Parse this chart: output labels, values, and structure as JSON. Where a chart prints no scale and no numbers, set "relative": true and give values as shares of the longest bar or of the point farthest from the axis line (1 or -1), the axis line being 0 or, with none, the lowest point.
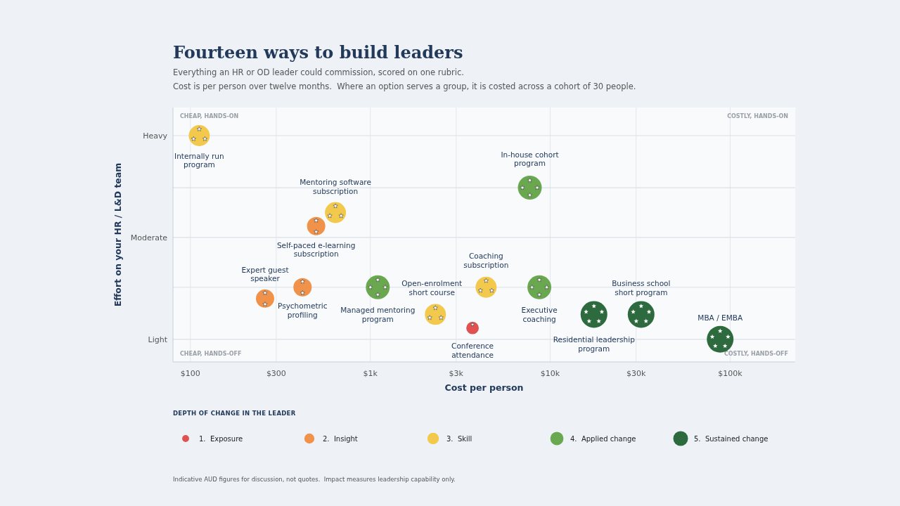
{
  "chart_data": {
    "type": "bubble",
    "title": "Fourteen ways to build leaders",
    "subtitle": "Everything an HR or OD leader could commission, scored on one rubric.",
    "xlabel": "Cost per person",
    "legend_title": "DEPTH OF CHANGE IN THE LEADER",
    "legend": "bottom",
    "grid": "x",
    "log": "x",
    "xlim": [
      80,
      230000
    ],
    "xticks": [
      {
        "value": 100,
        "label": "$100"
      },
      {
        "value": 300,
        "label": "$300"
      },
      {
        "value": 1000,
        "label": "$1k"
      },
      {
        "value": 3000,
        "label": "$3k"
      },
      {
        "value": 10000,
        "label": "$10k"
      },
      {
        "value": 30000,
        "label": "$30k"
      },
      {
        "value": 100000,
        "label": "$100k"
      }
    ],
    "relative": true,
    "ref_lines": [
      {
        "axis": "y",
        "value": 0.1,
        "label": "Light"
      },
      {
        "axis": "y",
        "value": 0.33,
        "label": null
      },
      {
        "axis": "y",
        "value": 0.55,
        "label": "Moderate"
      },
      {
        "axis": "y",
        "value": 0.77,
        "label": null
      },
      {
        "axis": "y",
        "value": 1,
        "label": "Heavy"
      }
    ],
    "series": [
      {
        "name": "1.  Exposure",
        "color": "#e05252",
        "x": [
          3700
        ],
        "values": [
          0.15
        ],
        "sizes": [
          0.22
        ]
      },
      {
        "name": "2.  Insight",
        "color": "#f0924a",
        "x": [
          500,
          260,
          420
        ],
        "values": [
          0.6,
          0.28,
          0.33
        ],
        "sizes": [
          0.47,
          0.47,
          0.47
        ]
      },
      {
        "name": "3.  Skill",
        "color": "#f2c94c",
        "x": [
          112,
          640,
          2300,
          4400
        ],
        "values": [
          1,
          0.66,
          0.21,
          0.33
        ],
        "sizes": [
          0.62,
          0.62,
          0.62,
          0.62
        ]
      },
      {
        "name": "4.  Applied change",
        "color": "#6aa84f",
        "x": [
          7700,
          1100,
          8700
        ],
        "values": [
          0.77,
          0.33,
          0.33
        ],
        "sizes": [
          0.8,
          0.8,
          0.8
        ]
      },
      {
        "name": "5.  Sustained change",
        "color": "#2d6a3e",
        "x": [
          17500,
          32000,
          88000
        ],
        "values": [
          0.21,
          0.21,
          0.1
        ],
        "sizes": [
          1,
          1,
          1
        ]
      }
    ],
    "annotations": [
      "CHEAP, HANDS-ON",
      "COSTLY, HANDS-ON",
      "CHEAP, HANDS-OFF",
      "COSTLY, HANDS-OFF",
      "Cost is per person over twelve months.  Where an option serves a group, it is costed across a cohort of 30 people.",
      "Indicative AUD figures for discussion, not quotes.  Impact measures leadership capability only.",
      "Effort on your HR / L&D team",
      {
        "text": "Conference attendance",
        "x": 3700,
        "y": 0.15
      },
      {
        "text": "Self-paced e-learning subscription",
        "x": 500,
        "y": 0.6
      },
      {
        "text": "Expert guest speaker",
        "x": 260,
        "y": 0.28
      },
      {
        "text": "Psychometric profiling",
        "x": 420,
        "y": 0.33
      },
      {
        "text": "Internally run program",
        "x": 112,
        "y": 1
      },
      {
        "text": "Mentoring software subscription",
        "x": 640,
        "y": 0.66
      },
      {
        "text": "Open-enrolment short course",
        "x": 2300,
        "y": 0.21
      },
      {
        "text": "Coaching subscription",
        "x": 4400,
        "y": 0.33
      },
      {
        "text": "In-house cohort program",
        "x": 7700,
        "y": 0.77
      },
      {
        "text": "Managed mentoring program",
        "x": 1100,
        "y": 0.33
      },
      {
        "text": "Executive coaching",
        "x": 8700,
        "y": 0.33
      },
      {
        "text": "Residential leadership program",
        "x": 17500,
        "y": 0.21
      },
      {
        "text": "Business school short program",
        "x": 32000,
        "y": 0.21
      },
      {
        "text": "MBA / EMBA",
        "x": 88000,
        "y": 0.1
      }
    ]
  }
}
